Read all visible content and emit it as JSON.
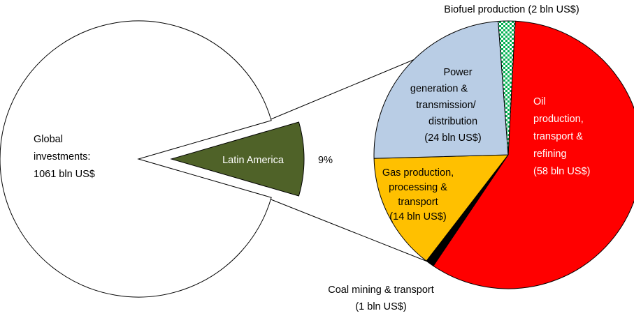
{
  "chart_data": [
    {
      "type": "pie",
      "label": [
        "Global",
        "investments:",
        "1061 bln US$"
      ],
      "categories": [
        "Latin America"
      ],
      "values": [
        9
      ],
      "value_labels": [
        "9%"
      ],
      "color": "#4f6228"
    },
    {
      "type": "pie",
      "categories": [
        [
          "Oil",
          "production,",
          "transport &",
          "refining"
        ],
        [
          "Coal mining & transport"
        ],
        [
          "Gas production,",
          "processing &",
          "transport"
        ],
        [
          "Power",
          "generation &",
          "transmission/",
          "distribution"
        ],
        [
          "Biofuel production"
        ]
      ],
      "values": [
        58,
        1,
        14,
        24,
        2
      ],
      "value_labels": [
        "(58 bln US$)",
        "(1 bln US$)",
        "(14 bln US$)",
        "(24 bln US$)",
        "(2 bln US$)"
      ],
      "colors": [
        "#ff0000",
        "#000000",
        "#ffc000",
        "#b9cde5",
        "#00b050"
      ]
    }
  ]
}
